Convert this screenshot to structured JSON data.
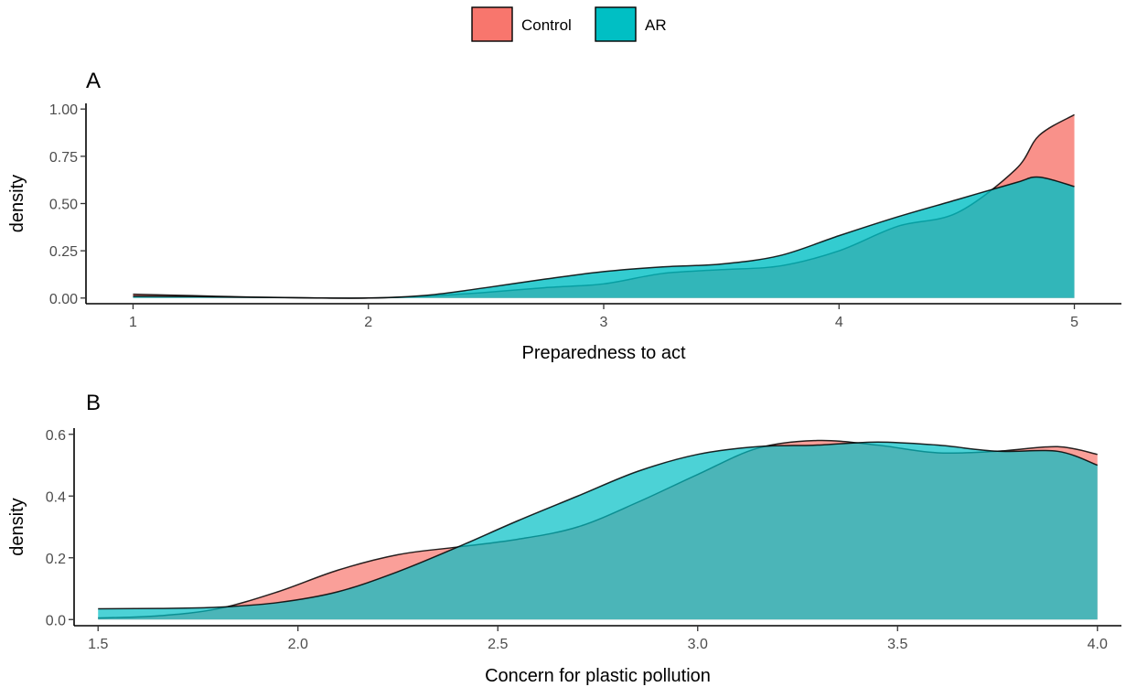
{
  "legend": {
    "position": "top-center",
    "items": [
      {
        "label": "Control",
        "color": "#F8766D"
      },
      {
        "label": "AR",
        "color": "#00BFC4"
      }
    ]
  },
  "chart_data": [
    {
      "type": "area",
      "subtype": "density",
      "tag": "A",
      "xlabel": "Preparedness to act",
      "ylabel": "density",
      "xlim": [
        0.8,
        5.2
      ],
      "ylim": [
        -0.03,
        1.03
      ],
      "xticks": [
        1,
        2,
        3,
        4,
        5
      ],
      "xtick_labels": [
        "1",
        "2",
        "3",
        "4",
        "5"
      ],
      "yticks": [
        0,
        0.25,
        0.5,
        0.75,
        1.0
      ],
      "ytick_labels": [
        "0.00",
        "0.25",
        "0.50",
        "0.75",
        "1.00"
      ],
      "grid": false,
      "series": [
        {
          "name": "Control",
          "color": "#F8766D",
          "x": [
            1.0,
            1.25,
            1.5,
            1.75,
            2.0,
            2.25,
            2.5,
            2.75,
            3.0,
            3.25,
            3.5,
            3.75,
            4.0,
            4.25,
            4.5,
            4.75,
            4.85,
            5.0
          ],
          "y": [
            0.02,
            0.013,
            0.005,
            0.001,
            0.0,
            0.01,
            0.03,
            0.055,
            0.075,
            0.13,
            0.15,
            0.17,
            0.25,
            0.38,
            0.45,
            0.68,
            0.86,
            0.97
          ]
        },
        {
          "name": "AR",
          "color": "#00BFC4",
          "x": [
            1.0,
            1.25,
            1.5,
            1.75,
            2.0,
            2.25,
            2.5,
            2.75,
            3.0,
            3.25,
            3.5,
            3.75,
            4.0,
            4.25,
            4.5,
            4.75,
            4.85,
            5.0
          ],
          "y": [
            0.01,
            0.008,
            0.004,
            0.001,
            0.0,
            0.015,
            0.055,
            0.1,
            0.14,
            0.165,
            0.18,
            0.225,
            0.33,
            0.43,
            0.52,
            0.61,
            0.64,
            0.59
          ]
        }
      ]
    },
    {
      "type": "area",
      "subtype": "density",
      "tag": "B",
      "xlabel": "Concern for plastic pollution",
      "ylabel": "density",
      "xlim": [
        1.44,
        4.06
      ],
      "ylim": [
        -0.02,
        0.62
      ],
      "xticks": [
        1.5,
        2.0,
        2.5,
        3.0,
        3.5,
        4.0
      ],
      "xtick_labels": [
        "1.5",
        "2.0",
        "2.5",
        "3.0",
        "3.5",
        "4.0"
      ],
      "yticks": [
        0,
        0.2,
        0.4,
        0.6
      ],
      "ytick_labels": [
        "0.0",
        "0.2",
        "0.4",
        "0.6"
      ],
      "grid": false,
      "series": [
        {
          "name": "Control",
          "color": "#F8766D",
          "x": [
            1.5,
            1.65,
            1.8,
            1.95,
            2.1,
            2.25,
            2.4,
            2.55,
            2.7,
            2.85,
            3.0,
            3.15,
            3.3,
            3.45,
            3.6,
            3.75,
            3.9,
            4.0
          ],
          "y": [
            0.005,
            0.012,
            0.035,
            0.09,
            0.16,
            0.21,
            0.235,
            0.26,
            0.3,
            0.38,
            0.47,
            0.555,
            0.58,
            0.565,
            0.54,
            0.545,
            0.56,
            0.535
          ]
        },
        {
          "name": "AR",
          "color": "#00BFC4",
          "x": [
            1.5,
            1.65,
            1.8,
            1.95,
            2.1,
            2.25,
            2.4,
            2.55,
            2.7,
            2.85,
            3.0,
            3.15,
            3.3,
            3.45,
            3.6,
            3.75,
            3.9,
            4.0
          ],
          "y": [
            0.035,
            0.036,
            0.04,
            0.055,
            0.09,
            0.155,
            0.235,
            0.32,
            0.4,
            0.48,
            0.535,
            0.56,
            0.565,
            0.575,
            0.565,
            0.545,
            0.545,
            0.5
          ]
        }
      ]
    }
  ]
}
